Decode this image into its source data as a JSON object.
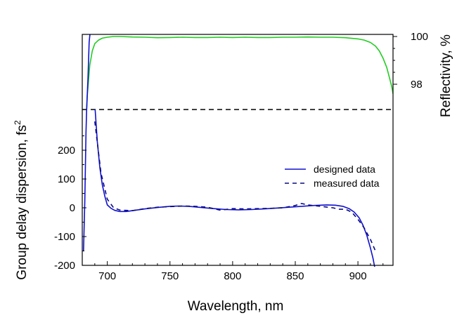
{
  "chart_data": {
    "type": "line",
    "xlabel": "Wavelength, nm",
    "ylabel_left": "Group delay dispersion, fs",
    "ylabel_left_superscript": "2",
    "ylabel_right": "Reflectivity, %",
    "x_range": [
      680,
      928
    ],
    "x_ticks": [
      700,
      750,
      800,
      850,
      900
    ],
    "x_tick_labels": [
      "700",
      "750",
      "800",
      "850",
      "900"
    ],
    "left_axis": {
      "y_ticks": [
        -200,
        -100,
        0,
        100,
        200
      ],
      "y_tick_labels": [
        "-200",
        "-100",
        "0",
        "100",
        "200"
      ]
    },
    "right_axis": {
      "y_ticks": [
        98,
        100
      ],
      "y_tick_labels": [
        "98",
        "100"
      ]
    },
    "colors": {
      "designed": "#1010d0",
      "measured": "#0a0a80",
      "reflectivity": "#22cc22",
      "separator": "#000000"
    },
    "legend": {
      "placement": "right, lower panel",
      "entries": [
        {
          "label": "designed data",
          "style": "solid",
          "color": "#1010d0"
        },
        {
          "label": "measured data",
          "style": "dashed",
          "color": "#0a0a80"
        }
      ]
    },
    "series": [
      {
        "name": "designed data",
        "axis": "left",
        "style": "solid",
        "x": [
          681,
          682,
          683,
          684,
          685,
          686,
          688,
          690,
          692,
          694,
          696,
          698,
          700,
          703,
          706,
          710,
          715,
          720,
          730,
          740,
          750,
          757,
          765,
          775,
          785,
          795,
          805,
          815,
          825,
          835,
          845,
          855,
          865,
          875,
          882,
          888,
          893,
          897,
          901,
          904,
          907,
          910,
          912,
          914
        ],
        "y": [
          -150,
          20,
          260,
          420,
          600,
          800,
          600,
          360,
          230,
          140,
          80,
          40,
          10,
          -2,
          -9,
          -13,
          -13,
          -10,
          -4,
          1,
          5,
          6,
          5,
          1,
          -3,
          -6,
          -7,
          -6,
          -4,
          -1,
          2,
          5,
          8,
          10,
          9,
          5,
          -3,
          -15,
          -35,
          -60,
          -95,
          -140,
          -175,
          -220
        ]
      },
      {
        "name": "measured data",
        "axis": "left",
        "style": "dashed",
        "x": [
          690,
          695,
          700,
          705,
          710,
          720,
          730,
          740,
          750,
          760,
          770,
          780,
          790,
          800,
          810,
          820,
          830,
          840,
          850,
          855,
          860,
          870,
          880,
          885,
          890,
          895,
          900,
          905,
          910,
          914
        ],
        "y": [
          300,
          120,
          30,
          0,
          -8,
          -10,
          -3,
          2,
          4,
          6,
          5,
          2,
          -8,
          -3,
          -4,
          -3,
          -2,
          0,
          8,
          15,
          10,
          5,
          0,
          -5,
          -5,
          -15,
          -40,
          -70,
          -110,
          -150
        ]
      },
      {
        "name": "Reflectivity",
        "axis": "right",
        "style": "solid",
        "x": [
          681,
          682,
          684,
          686,
          688,
          690,
          693,
          696,
          700,
          705,
          710,
          720,
          730,
          740,
          750,
          760,
          770,
          780,
          790,
          800,
          810,
          820,
          830,
          840,
          850,
          860,
          870,
          880,
          890,
          900,
          905,
          910,
          914,
          917,
          920,
          923,
          925,
          927,
          928
        ],
        "y": [
          92,
          95,
          97.5,
          98.8,
          99.4,
          99.7,
          99.85,
          99.93,
          99.97,
          100.0,
          100.0,
          99.98,
          99.97,
          99.95,
          99.96,
          99.97,
          99.96,
          99.96,
          99.97,
          99.96,
          99.97,
          99.96,
          99.96,
          99.97,
          99.97,
          99.98,
          99.97,
          99.97,
          99.95,
          99.9,
          99.85,
          99.75,
          99.6,
          99.4,
          99.1,
          98.7,
          98.3,
          97.9,
          97.6
        ]
      }
    ],
    "separator_line": {
      "style": "dashed"
    }
  }
}
